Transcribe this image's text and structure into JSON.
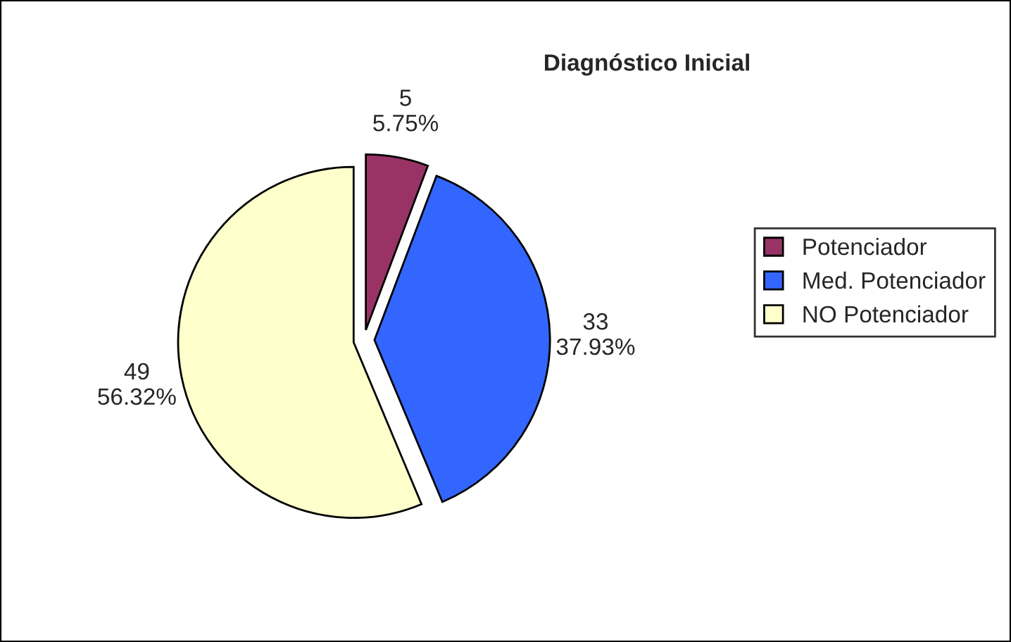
{
  "chart_data": {
    "type": "pie",
    "title": "Diagnóstico Inicial",
    "categories": [
      "Potenciador",
      "Med. Potenciador",
      "NO Potenciador"
    ],
    "values": [
      5,
      33,
      49
    ],
    "colors": [
      "#993366",
      "#3366ff",
      "#ffffcc"
    ],
    "value_labels": [
      "5\n5.75%",
      "33\n37.93%",
      "49\n56.32%"
    ],
    "legend": "right"
  }
}
